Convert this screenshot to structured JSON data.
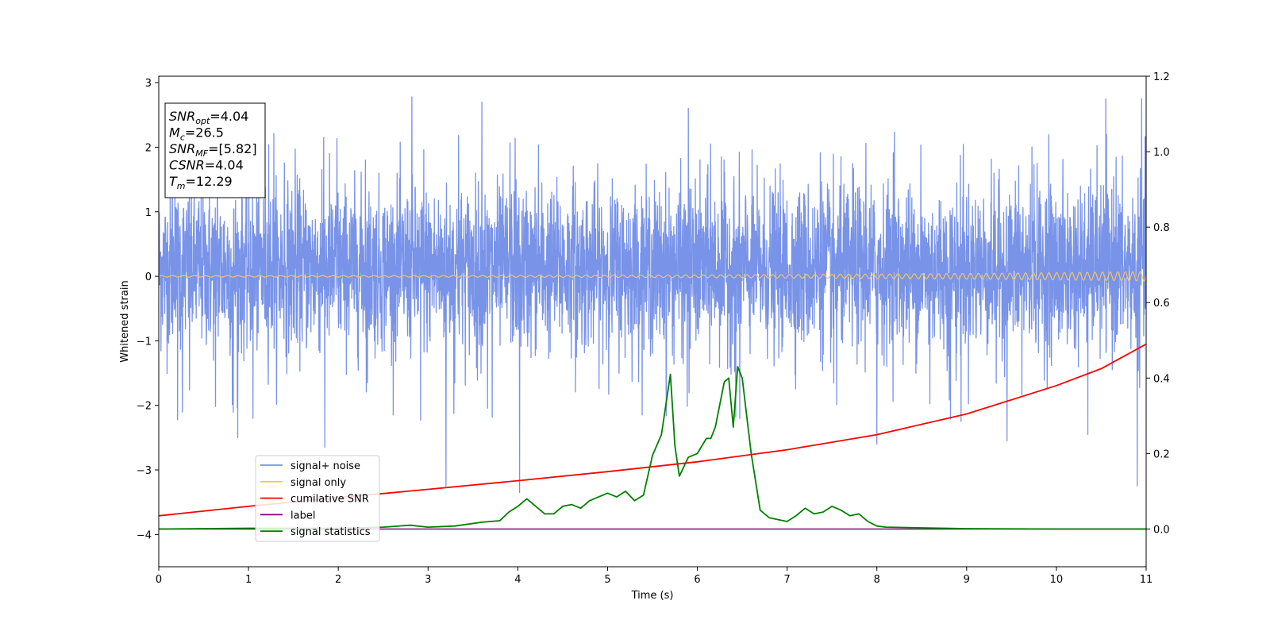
{
  "chart_data": {
    "type": "line",
    "xlabel": "Time (s)",
    "ylabel": "Whitened strain",
    "xlim": [
      0,
      11
    ],
    "ylim": [
      -4.5,
      3.1
    ],
    "y2lim": [
      -0.1,
      1.2
    ],
    "x_ticks": [
      0,
      1,
      2,
      3,
      4,
      5,
      6,
      7,
      8,
      9,
      10,
      11
    ],
    "y_ticks": [
      -4,
      -3,
      -2,
      -1,
      0,
      1,
      2,
      3
    ],
    "y2_ticks": [
      0.0,
      0.2,
      0.4,
      0.6,
      0.8,
      1.0,
      1.2
    ],
    "grid": false,
    "legend_placement": "lower-left",
    "info_box": {
      "lines": [
        {
          "base": "SNR",
          "sub": "opt",
          "value": "=4.04"
        },
        {
          "base": "M",
          "sub": "c",
          "value": "=26.5"
        },
        {
          "base": "SNR",
          "sub": "MF",
          "value": "=[5.82]"
        },
        {
          "base": "CSNR",
          "sub": "",
          "value": "=4.04"
        },
        {
          "base": "T",
          "sub": "m",
          "value": "=12.29"
        }
      ]
    },
    "series": [
      {
        "name": "signal+ noise",
        "axis": "left",
        "color": "#7893e8",
        "description_range": [
          -3.25,
          2.8
        ],
        "envelope_typical": [
          -1.2,
          1.6
        ],
        "peaks": [
          {
            "x": 0.88,
            "y": -2.5
          },
          {
            "x": 1.05,
            "y": -2.2
          },
          {
            "x": 1.4,
            "y": -2.35
          },
          {
            "x": 1.85,
            "y": -2.65
          },
          {
            "x": 2.82,
            "y": 2.78
          },
          {
            "x": 3.2,
            "y": -3.25
          },
          {
            "x": 3.6,
            "y": 2.7
          },
          {
            "x": 4.02,
            "y": -3.35
          },
          {
            "x": 5.9,
            "y": 2.6
          },
          {
            "x": 8.0,
            "y": -2.6
          },
          {
            "x": 9.45,
            "y": -2.55
          },
          {
            "x": 10.35,
            "y": -2.45
          },
          {
            "x": 10.55,
            "y": 2.75
          },
          {
            "x": 10.9,
            "y": -3.25
          },
          {
            "x": 10.95,
            "y": 2.75
          }
        ]
      },
      {
        "name": "signal only",
        "axis": "left",
        "color": "#f5c36b",
        "description": "chirp oscillation around 0, amplitude growing from ~0.01 to ~0.07"
      },
      {
        "name": "cumilative SNR",
        "axis": "right",
        "color": "#ff0000",
        "x": [
          0,
          1,
          2,
          3,
          4,
          5,
          6,
          7,
          8,
          9,
          10,
          10.5,
          11
        ],
        "y": [
          0.035,
          0.06,
          0.083,
          0.105,
          0.128,
          0.152,
          0.178,
          0.21,
          0.25,
          0.305,
          0.38,
          0.425,
          0.49
        ]
      },
      {
        "name": "label",
        "axis": "right",
        "color": "#800080",
        "x": [
          0,
          11
        ],
        "y": [
          0,
          0
        ]
      },
      {
        "name": "signal statistics",
        "axis": "right",
        "color": "#008000",
        "x": [
          0,
          0.5,
          1.0,
          1.5,
          2.0,
          2.5,
          2.8,
          3.0,
          3.3,
          3.6,
          3.8,
          3.9,
          4.0,
          4.1,
          4.2,
          4.3,
          4.4,
          4.5,
          4.6,
          4.7,
          4.8,
          4.9,
          5.0,
          5.1,
          5.2,
          5.3,
          5.4,
          5.5,
          5.6,
          5.7,
          5.75,
          5.8,
          5.9,
          6.0,
          6.1,
          6.15,
          6.2,
          6.3,
          6.35,
          6.4,
          6.45,
          6.5,
          6.55,
          6.6,
          6.7,
          6.8,
          6.9,
          7.0,
          7.1,
          7.2,
          7.3,
          7.4,
          7.5,
          7.6,
          7.7,
          7.8,
          7.9,
          8.0,
          8.1,
          8.5,
          9.0,
          10.0,
          11.0
        ],
        "y": [
          0.0,
          0.001,
          0.002,
          0.002,
          0.002,
          0.005,
          0.01,
          0.005,
          0.008,
          0.018,
          0.022,
          0.045,
          0.06,
          0.08,
          0.06,
          0.04,
          0.04,
          0.06,
          0.065,
          0.055,
          0.075,
          0.085,
          0.095,
          0.085,
          0.1,
          0.075,
          0.09,
          0.195,
          0.25,
          0.41,
          0.22,
          0.14,
          0.19,
          0.2,
          0.24,
          0.24,
          0.27,
          0.39,
          0.4,
          0.27,
          0.43,
          0.4,
          0.3,
          0.2,
          0.05,
          0.03,
          0.025,
          0.02,
          0.035,
          0.055,
          0.04,
          0.045,
          0.06,
          0.05,
          0.035,
          0.04,
          0.02,
          0.008,
          0.005,
          0.003,
          0.001,
          0.0,
          0.0
        ]
      }
    ]
  }
}
